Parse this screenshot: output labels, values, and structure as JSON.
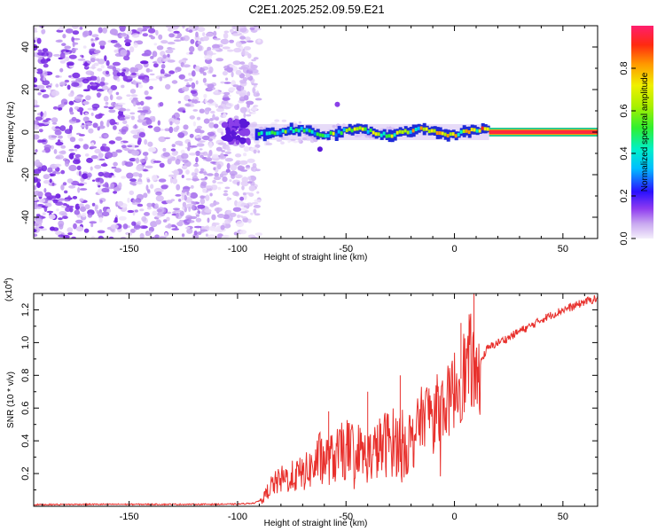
{
  "title": "C2E1.2025.252.09.59.E21",
  "chart_data": [
    {
      "type": "heatmap",
      "xlabel": "Height of straight line (km)",
      "ylabel": "Frequency (Hz)",
      "xlim": [
        -194,
        66
      ],
      "ylim": [
        -50,
        50
      ],
      "xticks": [
        -150,
        -100,
        -50,
        0,
        50
      ],
      "xtick_labels": [
        "-150",
        "-100",
        "-50",
        "0",
        "50"
      ],
      "yticks": [
        -40,
        -20,
        0,
        20,
        40
      ],
      "ytick_labels": [
        "-40",
        "-20",
        "0",
        "20",
        "40"
      ],
      "noise_region_x": [
        -194,
        -90
      ],
      "signal_region_x": [
        -96,
        66
      ],
      "signal_frequency_hz": 0,
      "colorbar": {
        "label": "Normalized spectral amplitude",
        "range": [
          0,
          1
        ],
        "ticks": [
          0.0,
          0.2,
          0.4,
          0.6,
          0.8
        ],
        "tick_labels": [
          "0.0",
          "0.2",
          "0.4",
          "0.6",
          "0.8"
        ]
      }
    },
    {
      "type": "line",
      "xlabel": "Height of straight line (km)",
      "ylabel": "SNR (10 * v/v)",
      "exponent_label": "(x10",
      "exponent_power": "4",
      "exponent_close": ")",
      "xlim": [
        -194,
        66
      ],
      "ylim": [
        0,
        1.3
      ],
      "xticks": [
        -150,
        -100,
        -50,
        0,
        50
      ],
      "xtick_labels": [
        "-150",
        "-100",
        "-50",
        "0",
        "50"
      ],
      "yticks": [
        0.2,
        0.4,
        0.6,
        0.8,
        1.0,
        1.2
      ],
      "ytick_labels": [
        "0.2",
        "0.4",
        "0.6",
        "0.8",
        "1.0",
        "1.2"
      ],
      "color": "#e8302c",
      "series": [
        {
          "name": "SNR",
          "x": [
            -194,
            -170,
            -140,
            -120,
            -100,
            -92,
            -88,
            -85,
            -80,
            -75,
            -70,
            -65,
            -62,
            -58,
            -55,
            -50,
            -45,
            -40,
            -35,
            -30,
            -25,
            -20,
            -15,
            -12,
            -8,
            -5,
            -2,
            0,
            3,
            6,
            8,
            10,
            12,
            15,
            20,
            25,
            30,
            35,
            40,
            45,
            50,
            55,
            60,
            66
          ],
          "y": [
            0.01,
            0.012,
            0.012,
            0.012,
            0.013,
            0.02,
            0.05,
            0.12,
            0.16,
            0.18,
            0.2,
            0.24,
            0.3,
            0.28,
            0.3,
            0.35,
            0.34,
            0.3,
            0.35,
            0.4,
            0.38,
            0.4,
            0.55,
            0.58,
            0.6,
            0.62,
            0.65,
            0.72,
            0.78,
            0.85,
            0.9,
            0.7,
            0.88,
            0.96,
            1.0,
            1.03,
            1.07,
            1.1,
            1.14,
            1.17,
            1.2,
            1.22,
            1.25,
            1.27
          ]
        }
      ],
      "peaks": [
        {
          "x": 9,
          "y": 1.3
        },
        {
          "x": 3,
          "y": 1.12
        },
        {
          "x": -25,
          "y": 0.8
        },
        {
          "x": -40,
          "y": 0.7
        },
        {
          "x": -58,
          "y": 0.58
        }
      ]
    }
  ],
  "colors": {
    "frame": "#000000",
    "signal_line": "#e8302c",
    "noise": "#7a2ee0"
  }
}
